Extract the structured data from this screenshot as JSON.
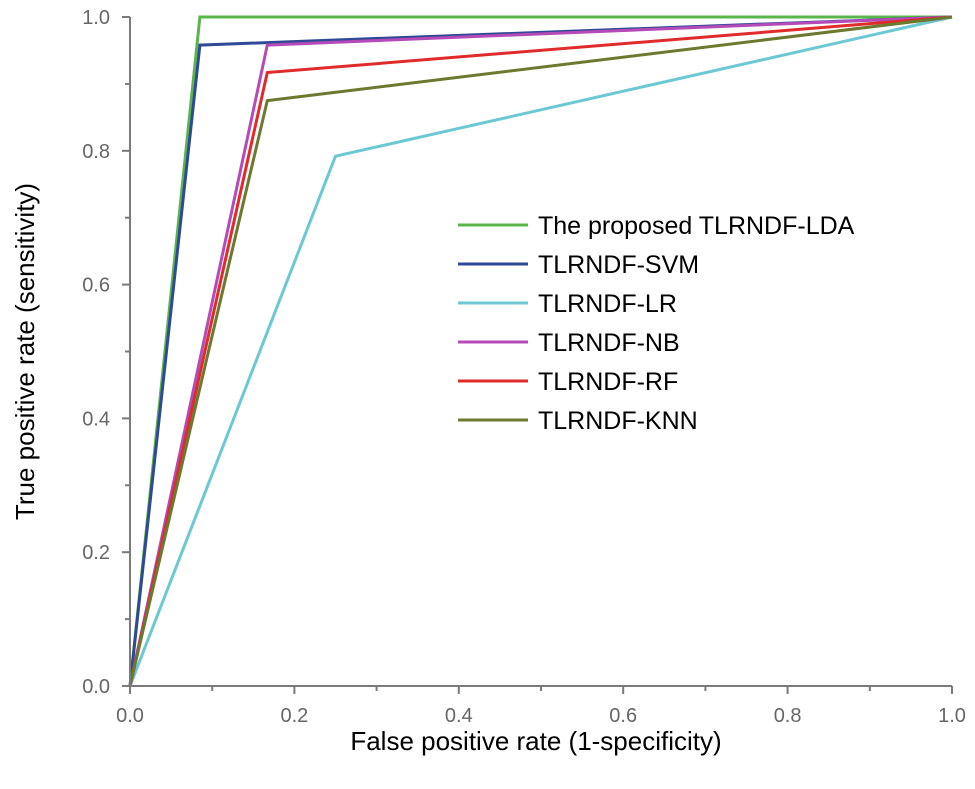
{
  "chart_data": {
    "type": "line",
    "title": "",
    "xlabel": "False positive rate (1-specificity)",
    "ylabel": "True positive rate (sensitivity)",
    "xlim": [
      0,
      1
    ],
    "ylim": [
      0,
      1
    ],
    "xticks": [
      "0.0",
      "0.2",
      "0.4",
      "0.6",
      "0.8",
      "1.0"
    ],
    "yticks": [
      "0.0",
      "0.2",
      "0.4",
      "0.6",
      "0.8",
      "1.0"
    ],
    "grid": false,
    "legend_position": "center-right",
    "series": [
      {
        "name": "The proposed TLRNDF-LDA",
        "color": "#5ab54a",
        "x": [
          0,
          0.085,
          1.0
        ],
        "y": [
          0,
          1.0,
          1.0
        ]
      },
      {
        "name": "TLRNDF-SVM",
        "color": "#2e4a96",
        "x": [
          0,
          0.085,
          1.0
        ],
        "y": [
          0,
          0.958,
          1.0
        ]
      },
      {
        "name": "TLRNDF-LR",
        "color": "#6cc8d2",
        "x": [
          0,
          0.25,
          1.0
        ],
        "y": [
          0,
          0.792,
          1.0
        ]
      },
      {
        "name": "TLRNDF-NB",
        "color": "#b44bb8",
        "x": [
          0,
          0.167,
          1.0
        ],
        "y": [
          0,
          0.958,
          1.0
        ]
      },
      {
        "name": "TLRNDF-RF",
        "color": "#e02b2b",
        "x": [
          0,
          0.167,
          1.0
        ],
        "y": [
          0,
          0.917,
          1.0
        ]
      },
      {
        "name": "TLRNDF-KNN",
        "color": "#6b7a2e",
        "x": [
          0,
          0.167,
          1.0
        ],
        "y": [
          0,
          0.875,
          1.0
        ]
      }
    ]
  }
}
